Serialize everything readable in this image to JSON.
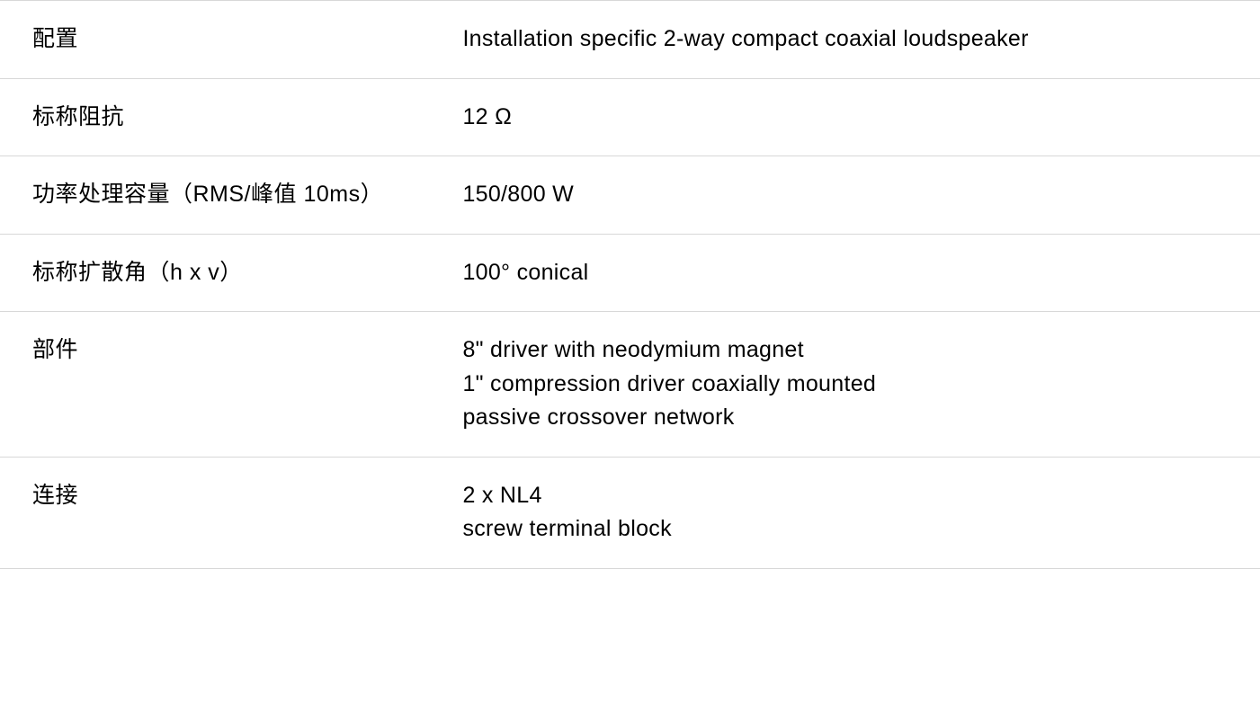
{
  "table": {
    "border_color": "#d8d8d8",
    "background_color": "#ffffff",
    "label_fontsize": 25,
    "value_fontsize": 25,
    "label_color": "#000000",
    "value_color": "#000000",
    "row_padding_y": 24,
    "row_padding_x": 36,
    "label_width_pct": 36,
    "rows": [
      {
        "label": "配置",
        "values": [
          "Installation specific 2-way compact coaxial loudspeaker"
        ]
      },
      {
        "label": "标称阻抗",
        "values": [
          "12 Ω"
        ]
      },
      {
        "label": "功率处理容量（RMS/峰值 10ms）",
        "values": [
          "150/800 W"
        ]
      },
      {
        "label": "标称扩散角（h x v）",
        "values": [
          "100° conical"
        ]
      },
      {
        "label": "部件",
        "values": [
          "8\" driver with neodymium magnet",
          "1\" compression driver coaxially mounted",
          "passive crossover network"
        ]
      },
      {
        "label": "连接",
        "values": [
          "2 x NL4",
          "screw terminal block"
        ]
      }
    ]
  }
}
